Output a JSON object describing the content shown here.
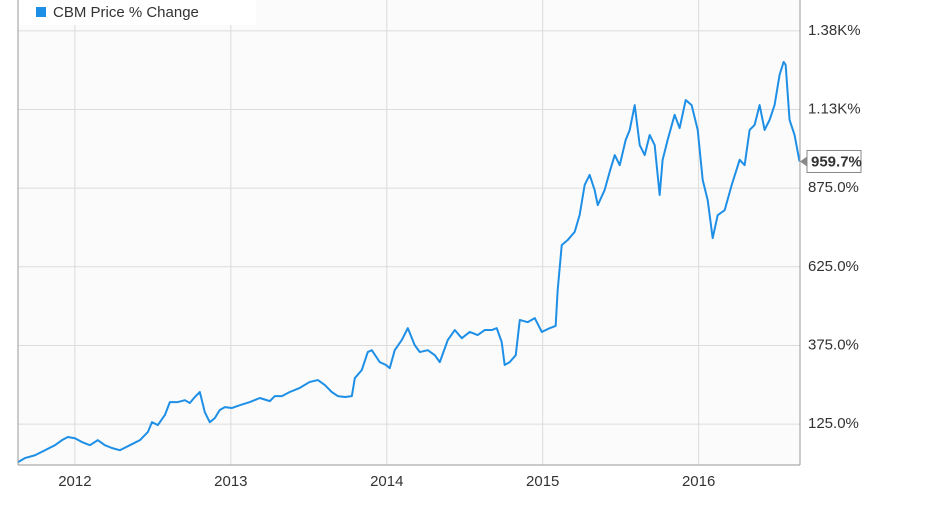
{
  "chart_data": {
    "type": "line",
    "x": [
      2011.635,
      2011.679,
      2011.744,
      2011.808,
      2011.872,
      2011.917,
      2011.955,
      2012.0,
      2012.045,
      2012.096,
      2012.147,
      2012.192,
      2012.237,
      2012.288,
      2012.353,
      2012.417,
      2012.468,
      2012.494,
      2012.532,
      2012.577,
      2012.609,
      2012.66,
      2012.705,
      2012.737,
      2012.769,
      2012.801,
      2012.833,
      2012.865,
      2012.897,
      2012.929,
      2012.962,
      2013.006,
      2013.058,
      2013.122,
      2013.186,
      2013.25,
      2013.282,
      2013.327,
      2013.378,
      2013.442,
      2013.506,
      2013.558,
      2013.603,
      2013.647,
      2013.686,
      2013.731,
      2013.776,
      2013.795,
      2013.84,
      2013.878,
      2013.904,
      2013.955,
      2013.994,
      2014.019,
      2014.051,
      2014.096,
      2014.135,
      2014.179,
      2014.212,
      2014.263,
      2014.308,
      2014.34,
      2014.391,
      2014.436,
      2014.481,
      2014.532,
      2014.583,
      2014.628,
      2014.673,
      2014.705,
      2014.737,
      2014.756,
      2014.788,
      2014.827,
      2014.853,
      2014.904,
      2014.949,
      2014.994,
      2015.045,
      2015.083,
      2015.096,
      2015.122,
      2015.16,
      2015.205,
      2015.237,
      2015.269,
      2015.301,
      2015.333,
      2015.353,
      2015.397,
      2015.429,
      2015.462,
      2015.494,
      2015.532,
      2015.558,
      2015.59,
      2015.622,
      2015.654,
      2015.686,
      2015.718,
      2015.75,
      2015.769,
      2015.801,
      2015.846,
      2015.878,
      2015.917,
      2015.955,
      2015.994,
      2016.026,
      2016.058,
      2016.09,
      2016.122,
      2016.167,
      2016.212,
      2016.263,
      2016.295,
      2016.327,
      2016.359,
      2016.391,
      2016.423,
      2016.455,
      2016.487,
      2016.519,
      2016.545,
      2016.558,
      2016.583,
      2016.615,
      2016.647
    ],
    "series": [
      {
        "name": "CBM Price % Change",
        "color": "#1e8fe6",
        "values": [
          4,
          17,
          26,
          42,
          58,
          74,
          84,
          80,
          68,
          58,
          74,
          58,
          49,
          42,
          58,
          74,
          100,
          131,
          122,
          154,
          195,
          195,
          201,
          192,
          211,
          227,
          163,
          131,
          144,
          170,
          179,
          176,
          185,
          195,
          208,
          198,
          214,
          214,
          227,
          240,
          259,
          265,
          249,
          227,
          214,
          211,
          214,
          271,
          297,
          354,
          360,
          322,
          313,
          303,
          360,
          392,
          430,
          376,
          354,
          360,
          344,
          322,
          392,
          424,
          398,
          418,
          408,
          424,
          424,
          430,
          386,
          313,
          322,
          344,
          456,
          449,
          462,
          418,
          430,
          437,
          551,
          694,
          710,
          736,
          790,
          885,
          917,
          869,
          821,
          869,
          926,
          980,
          948,
          1028,
          1060,
          1139,
          1012,
          980,
          1044,
          1012,
          853,
          965,
          1028,
          1108,
          1066,
          1155,
          1139,
          1060,
          901,
          837,
          716,
          789,
          805,
          885,
          965,
          948,
          1060,
          1076,
          1139,
          1060,
          1092,
          1139,
          1235,
          1276,
          1267,
          1092,
          1044,
          959.7
        ],
        "value_labels": [
          null,
          null,
          null,
          null,
          null,
          null,
          null,
          null,
          null,
          null,
          null,
          null,
          null,
          null,
          null,
          null,
          null,
          null,
          null,
          null,
          null,
          null,
          null,
          null,
          null,
          null,
          null,
          null,
          null,
          null,
          null,
          null,
          null,
          null,
          null,
          null,
          null,
          null,
          null,
          null,
          null,
          null,
          null,
          null,
          null,
          null,
          null,
          null,
          null,
          null,
          null,
          null,
          null,
          null,
          null,
          null,
          null,
          null,
          null,
          null,
          null,
          null,
          null,
          null,
          null,
          null,
          null,
          null,
          null,
          null,
          null,
          null,
          null,
          null,
          null,
          null,
          null,
          null,
          null,
          null,
          null,
          null,
          null,
          null,
          null,
          null,
          null,
          null,
          null,
          null,
          null,
          null,
          null,
          null,
          null,
          null,
          null,
          null,
          null,
          null,
          null,
          null,
          null,
          null,
          null,
          null,
          null,
          null,
          null,
          null,
          null,
          null,
          null,
          null,
          null,
          null,
          null,
          null,
          null,
          null,
          null,
          null,
          null,
          null,
          null,
          null,
          null,
          "959.7%"
        ]
      }
    ],
    "xlim": [
      2011.635,
      2016.65
    ],
    "xticks": [
      2012,
      2013,
      2014,
      2015,
      2016
    ],
    "ylim": [
      -5,
      1473
    ],
    "yticks": [
      {
        "value": 125,
        "label": "125.0%"
      },
      {
        "value": 375,
        "label": "375.0%"
      },
      {
        "value": 625,
        "label": "625.0%"
      },
      {
        "value": 875,
        "label": "875.0%"
      },
      {
        "value": 1125,
        "label": "1.13K%"
      },
      {
        "value": 1375,
        "label": "1.38K%"
      }
    ],
    "grid": true,
    "legend": "top-left"
  }
}
